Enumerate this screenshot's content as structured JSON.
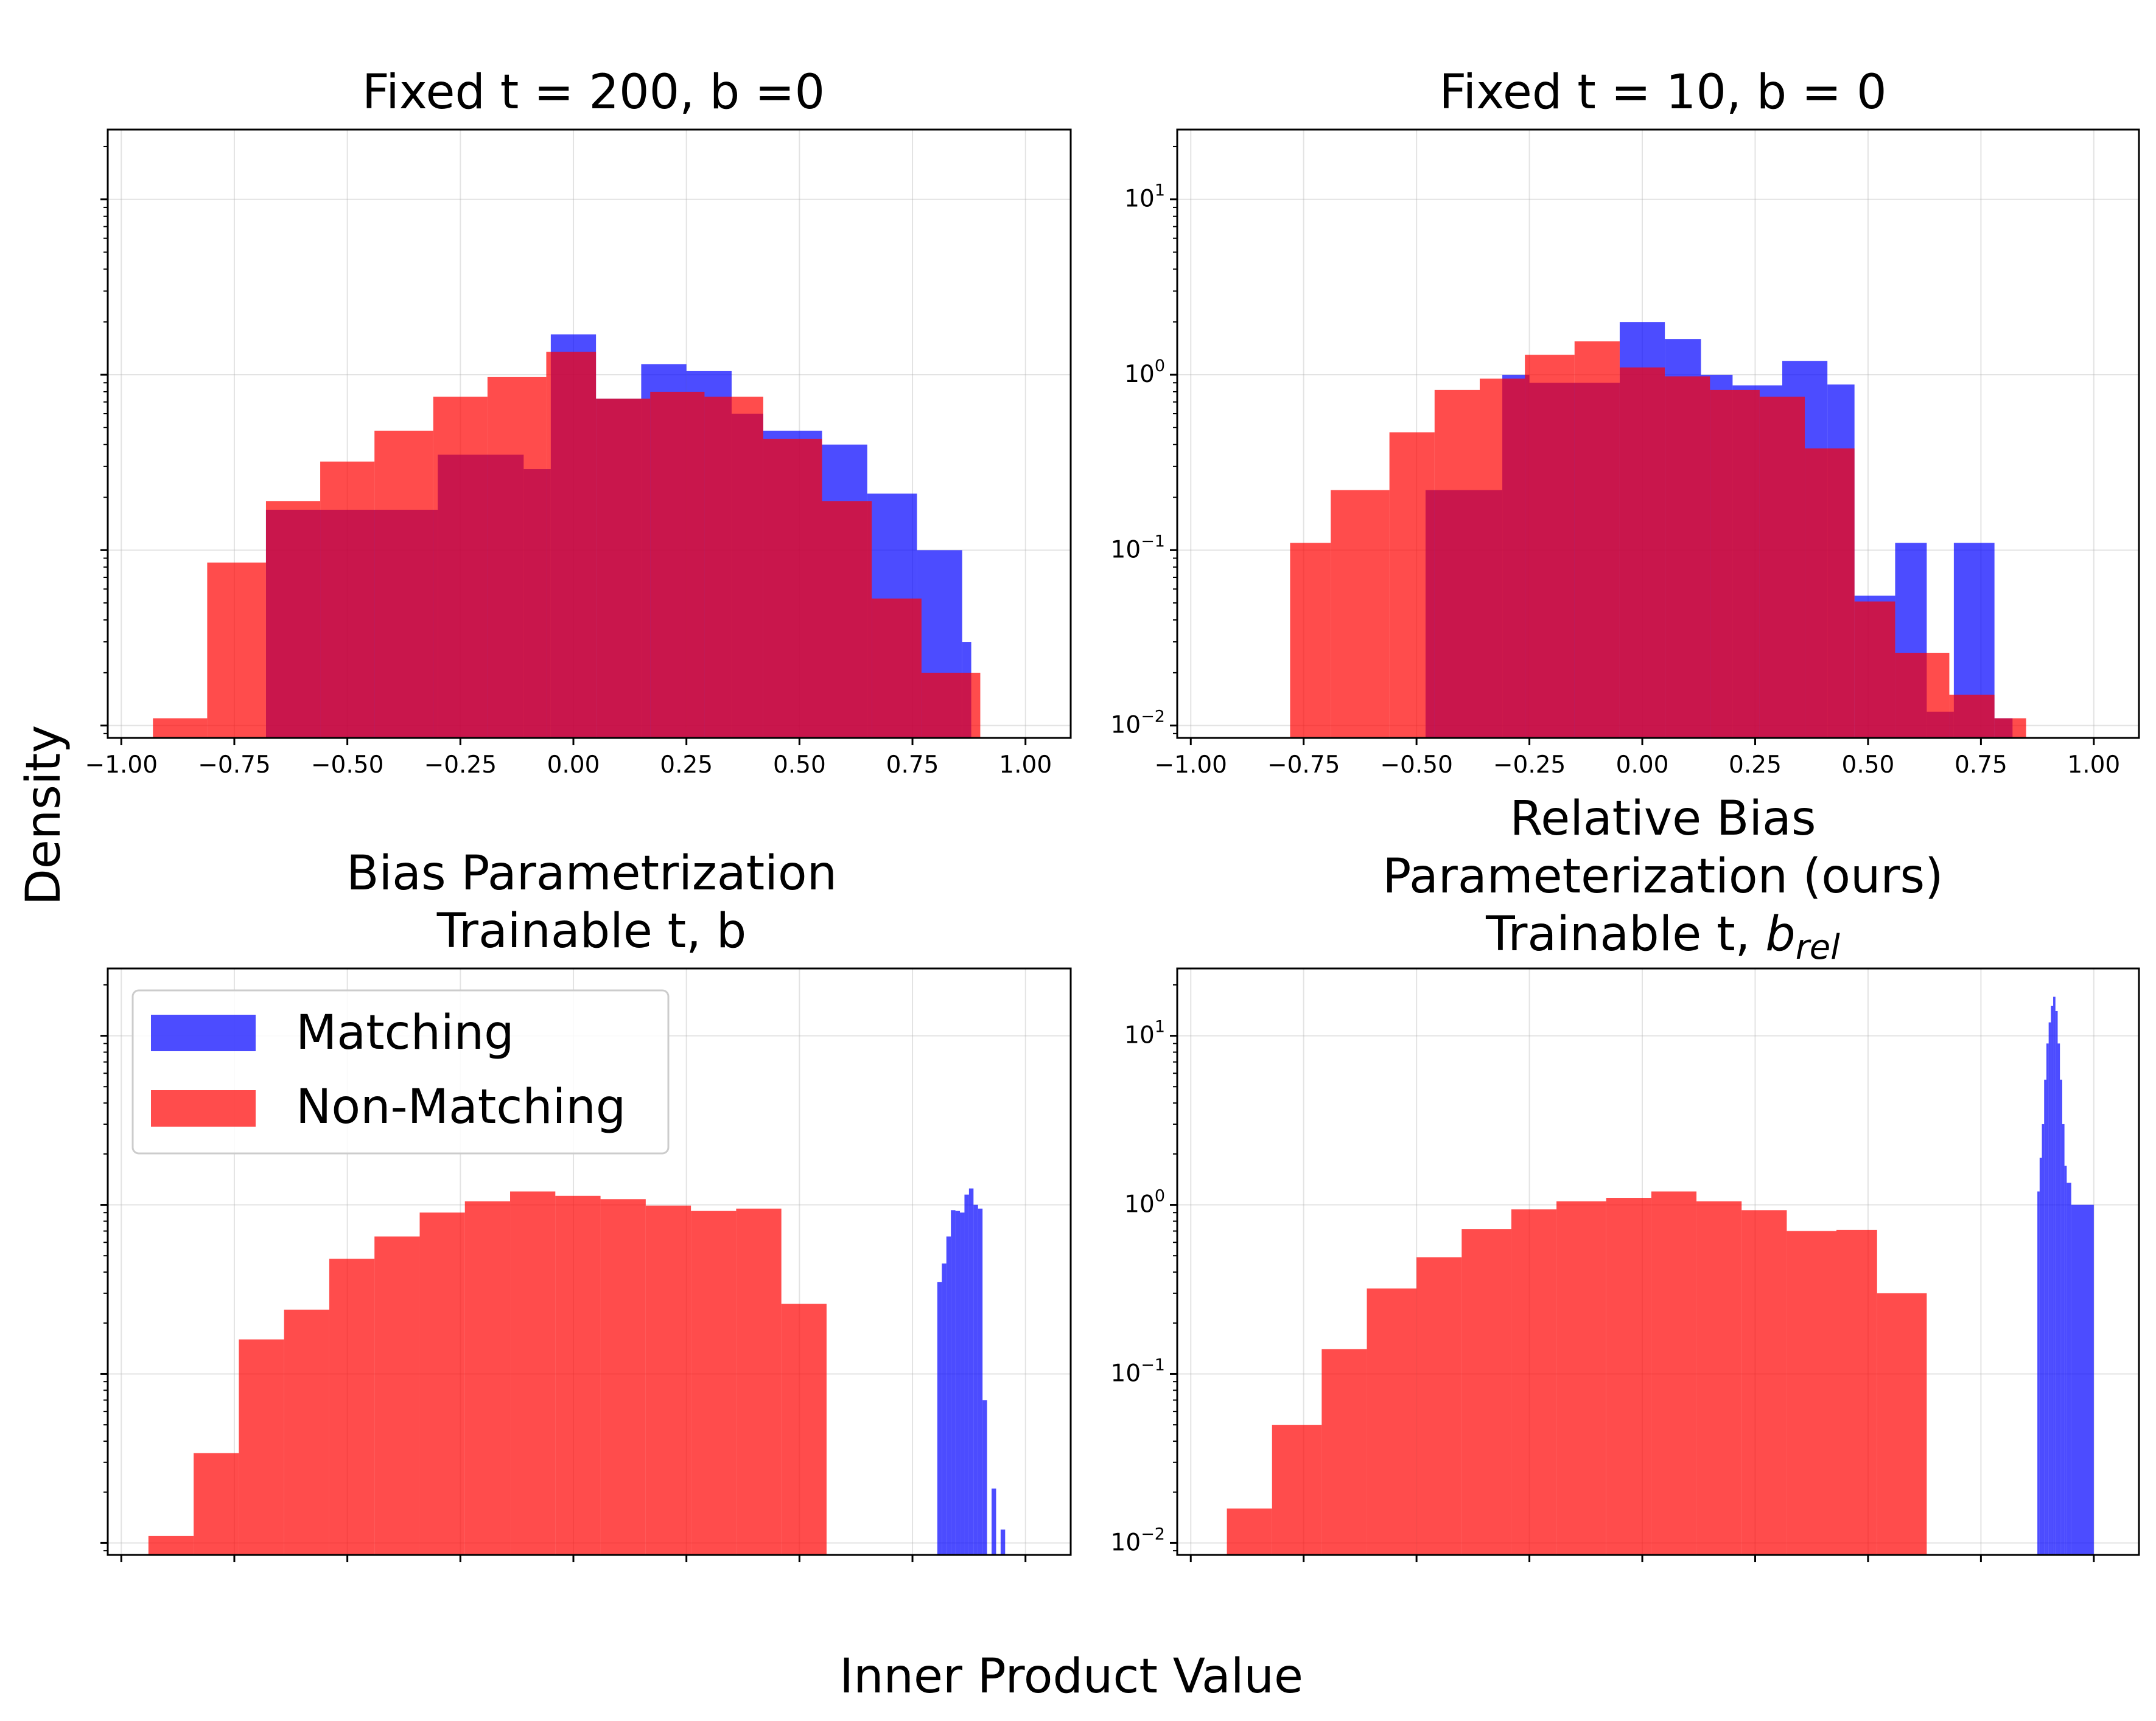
{
  "figure": {
    "ylabel": "Density",
    "xlabel": "Inner Product Value",
    "legend": {
      "matching": "Matching",
      "non_matching": "Non-Matching"
    }
  },
  "colors": {
    "matching": "#0000ff",
    "non_matching": "#ff0000",
    "overlap": "#c8174c"
  },
  "titles": {
    "p1": [
      "Fixed t = 200, b =0"
    ],
    "p2": [
      "Fixed t = 10, b = 0"
    ],
    "p3": [
      "Bias Parametrization",
      "Trainable t, b"
    ],
    "p4": [
      "Relative Bias",
      "Parameterization (ours)",
      "Trainable t, "
    ],
    "p4_sym_base": "b",
    "p4_sym_sub": "rel"
  },
  "axis": {
    "xticks": [
      "−1.00",
      "−0.75",
      "−0.50",
      "−0.25",
      "0.00",
      "0.25",
      "0.50",
      "0.75",
      "1.00"
    ],
    "ytick_base": "10",
    "ytick_exps": [
      "1",
      "0",
      "−1",
      "−2"
    ]
  },
  "chart_data": [
    {
      "type": "histogram",
      "title": "Fixed t = 200, b =0",
      "xlim": [
        -1.03,
        1.1
      ],
      "ylim": [
        0.0085,
        25
      ],
      "yscale": "log",
      "grid": true,
      "x_tick_labels_shown": true,
      "y_tick_labels_shown": false,
      "series": [
        {
          "name": "Matching",
          "bins": [
            [
              -0.68,
              -0.3,
              0.17
            ],
            [
              -0.3,
              -0.11,
              0.35
            ],
            [
              -0.11,
              -0.05,
              0.29
            ],
            [
              -0.05,
              0.05,
              1.7
            ],
            [
              0.05,
              0.15,
              0.73
            ],
            [
              0.15,
              0.25,
              1.15
            ],
            [
              0.25,
              0.35,
              1.05
            ],
            [
              0.35,
              0.42,
              0.6
            ],
            [
              0.42,
              0.55,
              0.48
            ],
            [
              0.55,
              0.65,
              0.4
            ],
            [
              0.65,
              0.76,
              0.21
            ],
            [
              0.76,
              0.86,
              0.1
            ],
            [
              0.86,
              0.88,
              0.03
            ]
          ]
        },
        {
          "name": "Non-Matching",
          "bins": [
            [
              -0.93,
              -0.81,
              0.011
            ],
            [
              -0.81,
              -0.68,
              0.085
            ],
            [
              -0.68,
              -0.56,
              0.19
            ],
            [
              -0.56,
              -0.44,
              0.32
            ],
            [
              -0.44,
              -0.31,
              0.48
            ],
            [
              -0.31,
              -0.19,
              0.75
            ],
            [
              -0.19,
              -0.06,
              0.97
            ],
            [
              -0.06,
              0.05,
              1.35
            ],
            [
              0.05,
              0.17,
              0.73
            ],
            [
              0.17,
              0.29,
              0.8
            ],
            [
              0.29,
              0.42,
              0.75
            ],
            [
              0.42,
              0.55,
              0.43
            ],
            [
              0.55,
              0.66,
              0.19
            ],
            [
              0.66,
              0.77,
              0.053
            ],
            [
              0.77,
              0.9,
              0.02
            ]
          ]
        }
      ]
    },
    {
      "type": "histogram",
      "title": "Fixed t = 10, b = 0",
      "xlim": [
        -1.03,
        1.1
      ],
      "ylim": [
        0.0085,
        25
      ],
      "yscale": "log",
      "grid": true,
      "x_tick_labels_shown": true,
      "y_tick_labels_shown": true,
      "series": [
        {
          "name": "Matching",
          "bins": [
            [
              -0.48,
              -0.31,
              0.22
            ],
            [
              -0.31,
              -0.25,
              1.0
            ],
            [
              -0.25,
              -0.05,
              0.9
            ],
            [
              -0.05,
              0.05,
              2.0
            ],
            [
              0.05,
              0.13,
              1.6
            ],
            [
              0.13,
              0.2,
              1.0
            ],
            [
              0.2,
              0.31,
              0.87
            ],
            [
              0.31,
              0.41,
              1.2
            ],
            [
              0.41,
              0.47,
              0.88
            ],
            [
              0.47,
              0.56,
              0.055
            ],
            [
              0.56,
              0.63,
              0.11
            ],
            [
              0.63,
              0.69,
              0.012
            ],
            [
              0.69,
              0.78,
              0.11
            ],
            [
              0.78,
              0.82,
              0.011
            ]
          ]
        },
        {
          "name": "Non-Matching",
          "bins": [
            [
              -0.78,
              -0.69,
              0.11
            ],
            [
              -0.69,
              -0.56,
              0.22
            ],
            [
              -0.56,
              -0.46,
              0.47
            ],
            [
              -0.46,
              -0.36,
              0.82
            ],
            [
              -0.36,
              -0.26,
              0.95
            ],
            [
              -0.26,
              -0.15,
              1.3
            ],
            [
              -0.15,
              -0.05,
              1.55
            ],
            [
              -0.05,
              0.05,
              1.1
            ],
            [
              0.05,
              0.15,
              0.98
            ],
            [
              0.15,
              0.26,
              0.82
            ],
            [
              0.26,
              0.36,
              0.75
            ],
            [
              0.36,
              0.47,
              0.38
            ],
            [
              0.47,
              0.56,
              0.051
            ],
            [
              0.56,
              0.68,
              0.026
            ],
            [
              0.68,
              0.78,
              0.015
            ],
            [
              0.78,
              0.85,
              0.011
            ]
          ]
        }
      ]
    },
    {
      "type": "histogram",
      "title": "Bias Parametrization / Trainable t, b",
      "xlim": [
        -1.03,
        1.1
      ],
      "ylim": [
        0.0085,
        25
      ],
      "yscale": "log",
      "grid": true,
      "x_tick_labels_shown": false,
      "y_tick_labels_shown": false,
      "legend": "top-left",
      "series": [
        {
          "name": "Matching",
          "bins": [
            [
              0.805,
              0.815,
              0.35
            ],
            [
              0.815,
              0.825,
              0.45
            ],
            [
              0.825,
              0.835,
              0.65
            ],
            [
              0.835,
              0.845,
              0.93
            ],
            [
              0.845,
              0.855,
              0.92
            ],
            [
              0.855,
              0.865,
              0.9
            ],
            [
              0.865,
              0.875,
              1.15
            ],
            [
              0.875,
              0.885,
              1.25
            ],
            [
              0.885,
              0.895,
              1.0
            ],
            [
              0.895,
              0.905,
              0.95
            ],
            [
              0.905,
              0.915,
              0.07
            ],
            [
              0.925,
              0.935,
              0.021
            ],
            [
              0.945,
              0.955,
              0.012
            ]
          ]
        },
        {
          "name": "Non-Matching",
          "bins": [
            [
              -0.94,
              -0.84,
              0.011
            ],
            [
              -0.84,
              -0.74,
              0.034
            ],
            [
              -0.74,
              -0.64,
              0.16
            ],
            [
              -0.64,
              -0.54,
              0.24
            ],
            [
              -0.54,
              -0.44,
              0.48
            ],
            [
              -0.44,
              -0.34,
              0.65
            ],
            [
              -0.34,
              -0.24,
              0.9
            ],
            [
              -0.24,
              -0.14,
              1.05
            ],
            [
              -0.14,
              -0.04,
              1.2
            ],
            [
              -0.04,
              0.06,
              1.13
            ],
            [
              0.06,
              0.16,
              1.08
            ],
            [
              0.16,
              0.26,
              0.99
            ],
            [
              0.26,
              0.36,
              0.92
            ],
            [
              0.36,
              0.46,
              0.95
            ],
            [
              0.46,
              0.56,
              0.26
            ]
          ]
        }
      ]
    },
    {
      "type": "histogram",
      "title": "Relative Bias Parameterization (ours) / Trainable t, b_rel",
      "xlim": [
        -1.03,
        1.1
      ],
      "ylim": [
        0.0085,
        25
      ],
      "yscale": "log",
      "grid": true,
      "x_tick_labels_shown": false,
      "y_tick_labels_shown": true,
      "series": [
        {
          "name": "Matching",
          "bins": [
            [
              0.875,
              0.88,
              1.2
            ],
            [
              0.88,
              0.885,
              1.9
            ],
            [
              0.885,
              0.89,
              3.0
            ],
            [
              0.89,
              0.895,
              5.5
            ],
            [
              0.895,
              0.9,
              9.0
            ],
            [
              0.9,
              0.905,
              12.0
            ],
            [
              0.905,
              0.91,
              15.0
            ],
            [
              0.91,
              0.915,
              17.0
            ],
            [
              0.915,
              0.92,
              14.0
            ],
            [
              0.92,
              0.925,
              9.0
            ],
            [
              0.925,
              0.93,
              5.5
            ],
            [
              0.93,
              0.935,
              3.0
            ],
            [
              0.935,
              0.94,
              1.7
            ],
            [
              0.94,
              0.95,
              1.35
            ],
            [
              0.95,
              1.0,
              1.0
            ]
          ]
        },
        {
          "name": "Non-Matching",
          "bins": [
            [
              -0.92,
              -0.82,
              0.016
            ],
            [
              -0.82,
              -0.71,
              0.05
            ],
            [
              -0.71,
              -0.61,
              0.14
            ],
            [
              -0.61,
              -0.5,
              0.32
            ],
            [
              -0.5,
              -0.4,
              0.49
            ],
            [
              -0.4,
              -0.29,
              0.72
            ],
            [
              -0.29,
              -0.19,
              0.94
            ],
            [
              -0.19,
              -0.08,
              1.05
            ],
            [
              -0.08,
              0.02,
              1.1
            ],
            [
              0.02,
              0.12,
              1.2
            ],
            [
              0.12,
              0.22,
              1.05
            ],
            [
              0.22,
              0.32,
              0.93
            ],
            [
              0.32,
              0.43,
              0.7
            ],
            [
              0.43,
              0.52,
              0.71
            ],
            [
              0.52,
              0.63,
              0.3
            ]
          ]
        }
      ]
    }
  ]
}
